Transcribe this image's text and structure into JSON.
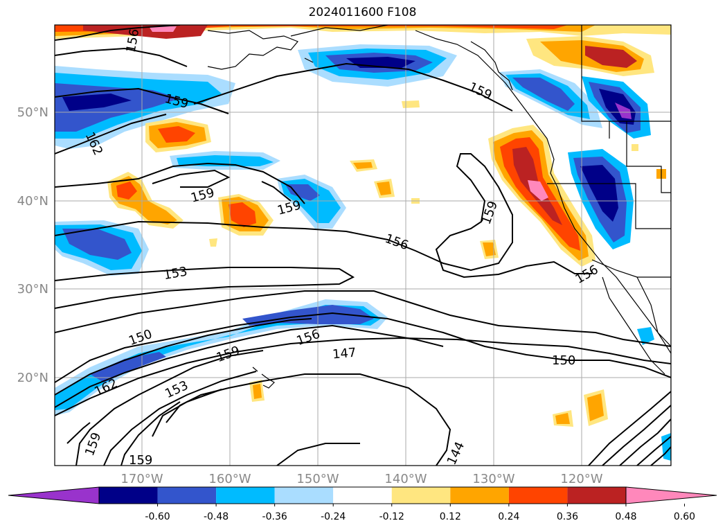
{
  "title": "2024011600 F108",
  "lon_ticks": [
    "170°W",
    "160°W",
    "150°W",
    "140°W",
    "130°W",
    "120°W"
  ],
  "lat_ticks": [
    "50°N",
    "40°N",
    "30°N",
    "20°N"
  ],
  "contour_labels": [
    "156",
    "159",
    "162",
    "159",
    "159",
    "159",
    "153",
    "156",
    "159",
    "156",
    "150",
    "156",
    "159",
    "147",
    "150",
    "162",
    "153",
    "159",
    "159",
    "144"
  ],
  "colorbar": {
    "colors": [
      "#9933cc",
      "#000088",
      "#3355cc",
      "#00bbff",
      "#aaddff",
      "#ffffff",
      "#ffe680",
      "#ffa500",
      "#ff4400",
      "#bb2222",
      "#ff88bb"
    ],
    "tick_labels": [
      "-0.60",
      "-0.48",
      "-0.36",
      "-0.24",
      "-0.12",
      "0.12",
      "0.24",
      "0.36",
      "0.48",
      "0.60"
    ]
  }
}
